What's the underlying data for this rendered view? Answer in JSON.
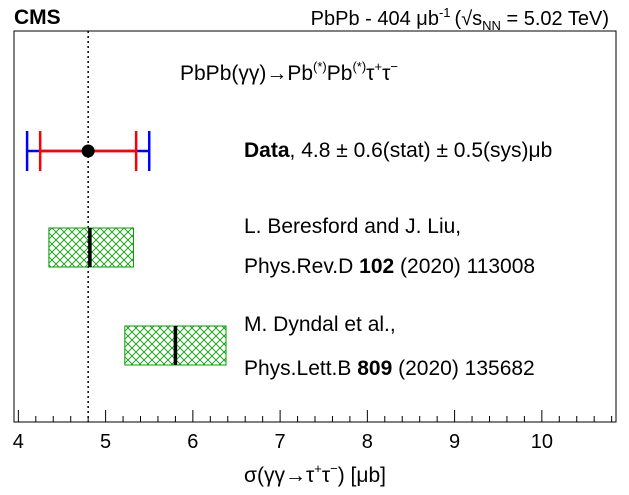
{
  "header": {
    "experiment": "CMS",
    "run_info": "PbPb - 404 μb",
    "run_info_exp": "-1",
    "energy_open": "(",
    "energy_sqrt": "√",
    "energy_s": "s",
    "energy_sub": "NN",
    "energy_rest": " = 5.02 TeV)"
  },
  "process": {
    "prefix": "PbPb(γγ)→Pb",
    "sup1": "(*)",
    "mid": "Pb",
    "sup2": "(*)",
    "tau1": "τ",
    "plus": "+",
    "tau2": "τ",
    "minus": "−"
  },
  "xlabel": {
    "prefix": "σ(γγ→τ",
    "plus": "+",
    "tau2": "τ",
    "minus": "−",
    "suffix": ") [μb]"
  },
  "labels": {
    "data_bold": "Data",
    "data_rest": ", 4.8 ± 0.6(stat) ± 0.5(sys)μb",
    "beresford_line1": "L. Beresford and J. Liu,",
    "beresford_line2_a": "Phys.Rev.D ",
    "beresford_line2_bold": "102",
    "beresford_line2_b": " (2020) 113008",
    "dyndal_line1": "M. Dyndal et al.,",
    "dyndal_line2_a": "Phys.Lett.B ",
    "dyndal_line2_bold": "809",
    "dyndal_line2_b": " (2020) 135682"
  },
  "colors": {
    "stat_error": "#ff0000",
    "total_error": "#0000ff",
    "theory_hatch": "#00a000",
    "reference_line": "#000000"
  },
  "chart_data": {
    "type": "scatter",
    "xlabel": "σ(γγ→τ+τ−) [μb]",
    "xlim": [
      3.95,
      10.85
    ],
    "xticks": [
      4,
      5,
      6,
      7,
      8,
      9,
      10
    ],
    "reference_line": 4.8,
    "measurement": {
      "name": "Data",
      "value": 4.8,
      "stat_err": 0.55,
      "total_err": 0.7
    },
    "predictions": [
      {
        "name": "L. Beresford and J. Liu",
        "value": 4.82,
        "low": 4.35,
        "high": 5.32
      },
      {
        "name": "M. Dyndal et al.",
        "value": 5.8,
        "low": 5.22,
        "high": 6.38
      }
    ]
  }
}
